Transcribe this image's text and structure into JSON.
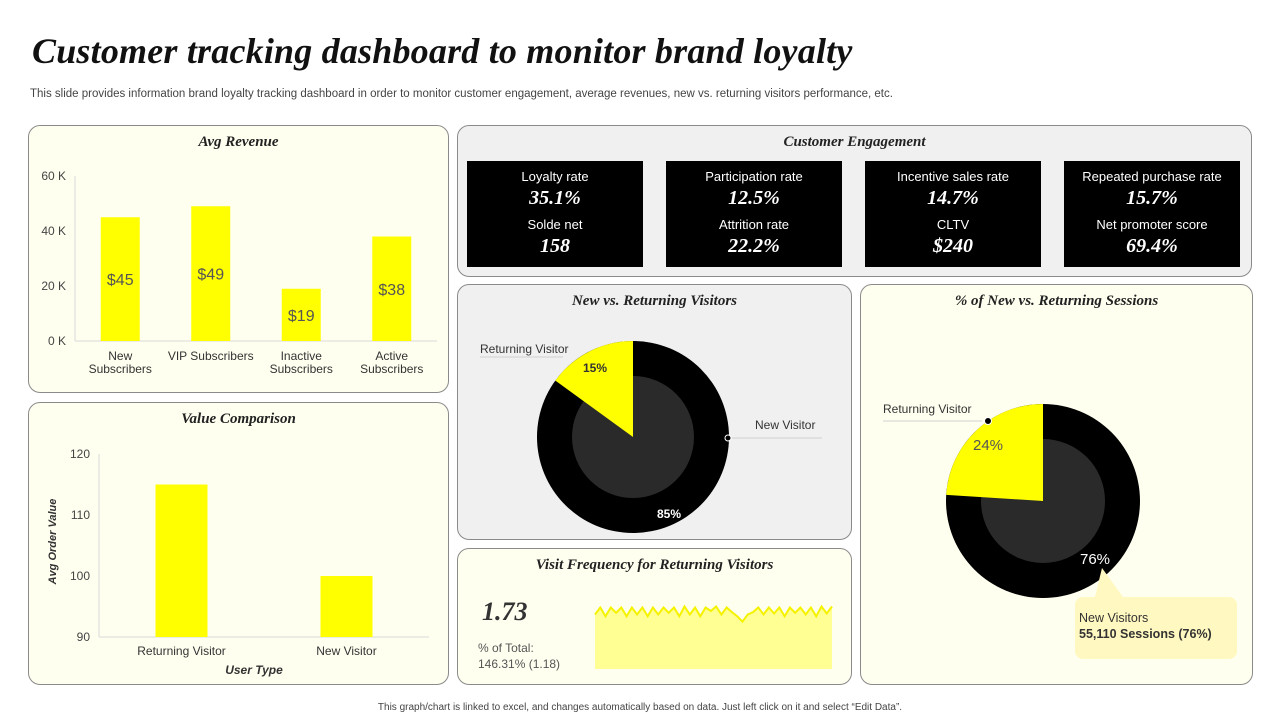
{
  "page": {
    "title": "Customer tracking dashboard to monitor brand loyalty",
    "subtitle": "This slide provides information brand loyalty tracking dashboard in order to monitor customer engagement, average revenues, new vs. returning visitors performance, etc.",
    "footer": "This graph/chart is linked to excel, and changes automatically based on data. Just left click on it and select “Edit Data”."
  },
  "colors": {
    "accent": "#ffff00",
    "dark": "#000000",
    "ring": "#2a2a2a"
  },
  "engagement": {
    "title": "Customer Engagement",
    "cards": [
      {
        "label1": "Loyalty rate",
        "value1": "35.1%",
        "label2": "Solde net",
        "value2": "158"
      },
      {
        "label1": "Participation rate",
        "value1": "12.5%",
        "label2": "Attrition rate",
        "value2": "22.2%"
      },
      {
        "label1": "Incentive  sales rate",
        "value1": "14.7%",
        "label2": "CLTV",
        "value2": "$240"
      },
      {
        "label1": "Repeated purchase rate",
        "value1": "15.7%",
        "label2": "Net promoter  score",
        "value2": "69.4%"
      }
    ]
  },
  "frequency": {
    "title": "Visit Frequency for Returning Visitors",
    "value": "1.73",
    "pct_label": "% of Total:",
    "pct_value": "146.31% (1.18)"
  },
  "sessions_callout": {
    "line1": "New Visitors",
    "line2": "55,110  Sessions  (76%)"
  },
  "chart_data": [
    {
      "type": "bar",
      "title": "Avg Revenue",
      "categories": [
        [
          "New",
          "Subscribers"
        ],
        [
          "VIP Subscribers"
        ],
        [
          "Inactive",
          "Subscribers"
        ],
        [
          "Active",
          "Subscribers"
        ]
      ],
      "values": [
        45,
        49,
        19,
        38
      ],
      "data_labels": [
        "$45",
        "$49",
        "$19",
        "$38"
      ],
      "ylim": [
        0,
        60
      ],
      "yticks": [
        0,
        20,
        40,
        60
      ],
      "ytick_labels": [
        "0 K",
        "20 K",
        "40 K",
        "60 K"
      ]
    },
    {
      "type": "bar",
      "title": "Value Comparison",
      "categories": [
        "Returning Visitor",
        "New Visitor"
      ],
      "values": [
        115,
        100
      ],
      "ylim": [
        90,
        120
      ],
      "yticks": [
        90,
        100,
        110,
        120
      ],
      "xlabel": "User Type",
      "ylabel": "Avg Order Value"
    },
    {
      "type": "pie",
      "title": "New vs. Returning Visitors",
      "labels": [
        "Returning Visitor",
        "New Visitor"
      ],
      "values": [
        15,
        85
      ],
      "data_labels": [
        "15%",
        "85%"
      ]
    },
    {
      "type": "pie",
      "title": "% of New vs. Returning Sessions",
      "labels": [
        "Returning Visitor",
        "New Visitors"
      ],
      "values": [
        24,
        76
      ],
      "data_labels": [
        "24%",
        "76%"
      ]
    },
    {
      "type": "area",
      "title": "Visit Frequency for Returning Visitors",
      "values": [
        1.55,
        1.75,
        1.5,
        1.75,
        1.6,
        1.75,
        1.5,
        1.75,
        1.55,
        1.75,
        1.5,
        1.75,
        1.55,
        1.75,
        1.6,
        1.75,
        1.5,
        1.78,
        1.55,
        1.75,
        1.5,
        1.75,
        1.65,
        1.78,
        1.55,
        1.75,
        1.62,
        1.5,
        1.35,
        1.55,
        1.62,
        1.75,
        1.55,
        1.75,
        1.58,
        1.75,
        1.5,
        1.75,
        1.6,
        1.75,
        1.55,
        1.75,
        1.5,
        1.78,
        1.58,
        1.78
      ],
      "ylim": [
        0,
        1.85
      ]
    }
  ]
}
